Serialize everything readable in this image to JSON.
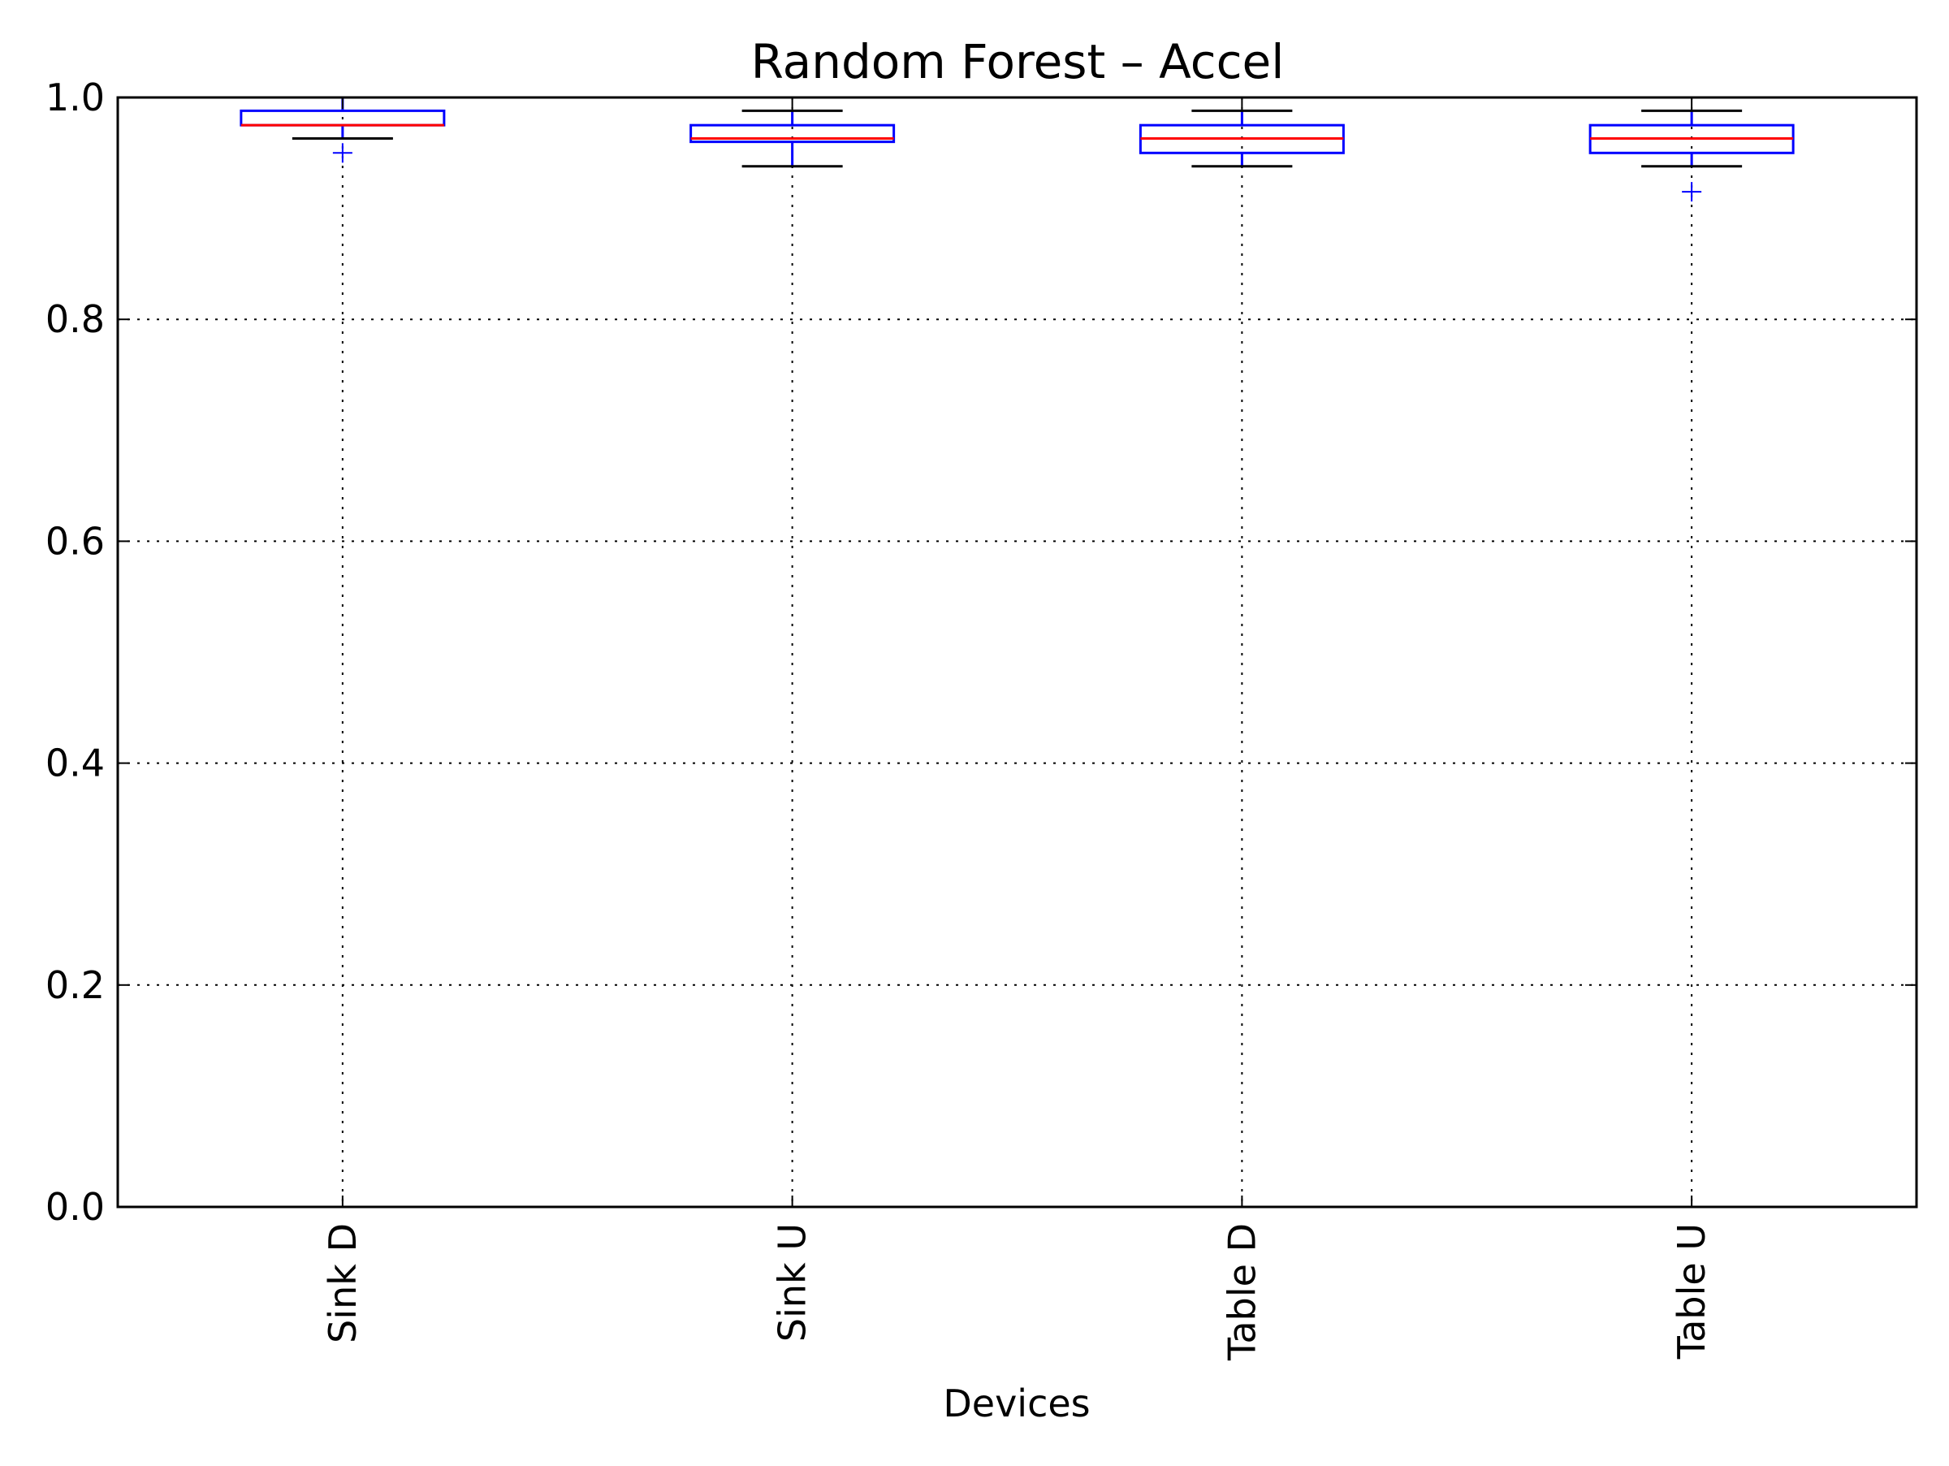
{
  "chart_data": {
    "type": "box",
    "title": "Random Forest – Accel",
    "xlabel": "Devices",
    "ylabel": "",
    "ylim": [
      0.0,
      1.0
    ],
    "yticks": [
      "0.0",
      "0.2",
      "0.4",
      "0.6",
      "0.8",
      "1.0"
    ],
    "categories": [
      "Sink D",
      "Sink U",
      "Table D",
      "Table U"
    ],
    "boxes": [
      {
        "whisker_low": 0.963,
        "q1": 0.975,
        "median": 0.975,
        "q3": 0.988,
        "whisker_high": 1.0,
        "outliers": [
          0.95
        ]
      },
      {
        "whisker_low": 0.938,
        "q1": 0.96,
        "median": 0.963,
        "q3": 0.975,
        "whisker_high": 0.988,
        "outliers": []
      },
      {
        "whisker_low": 0.938,
        "q1": 0.95,
        "median": 0.963,
        "q3": 0.975,
        "whisker_high": 0.988,
        "outliers": []
      },
      {
        "whisker_low": 0.938,
        "q1": 0.95,
        "median": 0.963,
        "q3": 0.975,
        "whisker_high": 0.988,
        "outliers": [
          0.915
        ]
      }
    ],
    "grid": true,
    "colors": {
      "box": "#0000ff",
      "median": "#ff0000",
      "whisker": "#000000",
      "outlier": "#0000ff"
    }
  }
}
